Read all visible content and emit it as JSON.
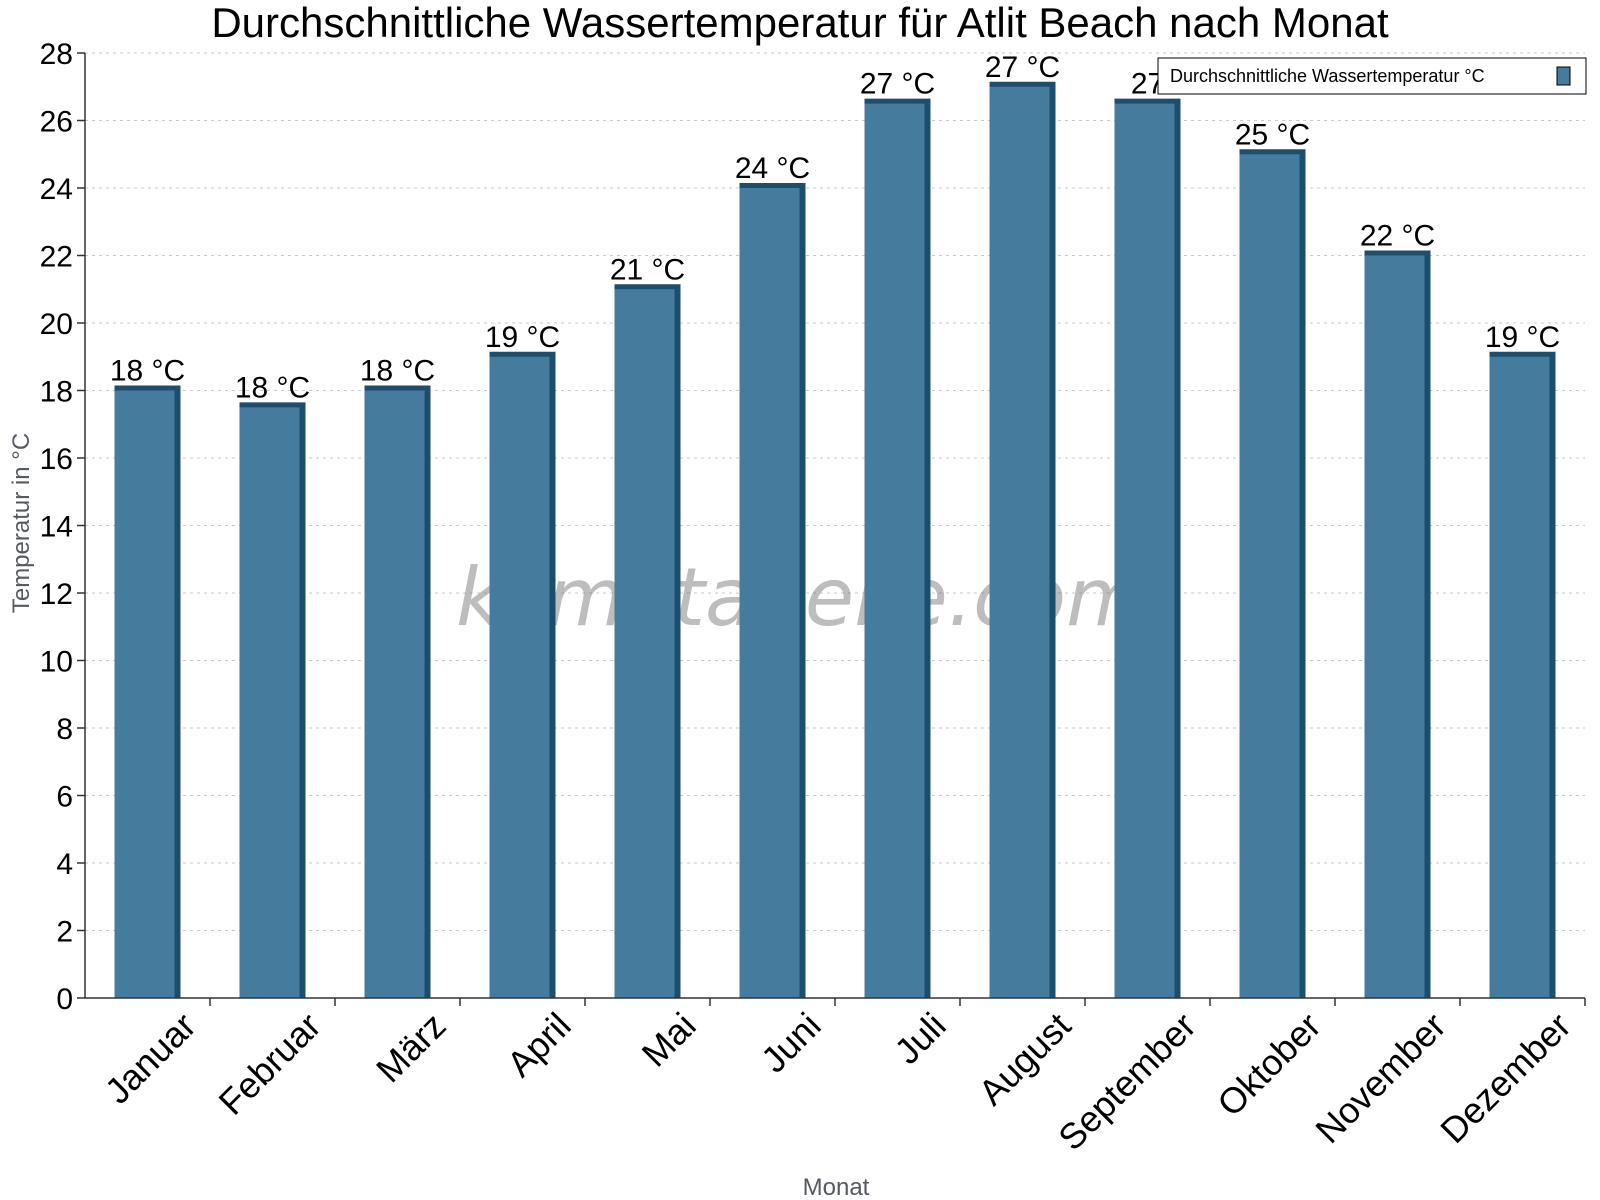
{
  "chart_data": {
    "type": "bar",
    "title": "Durchschnittliche Wassertemperatur für Atlit Beach nach Monat",
    "xlabel": "Monat",
    "ylabel": "Temperatur in °C",
    "ylim": [
      0,
      28
    ],
    "yticks": [
      "0",
      "2",
      "4",
      "6",
      "8",
      "10",
      "12",
      "14",
      "16",
      "18",
      "20",
      "22",
      "24",
      "26",
      "28"
    ],
    "grid": true,
    "legend_position": "top-right",
    "categories": [
      "Januar",
      "Februar",
      "März",
      "April",
      "Mai",
      "Juni",
      "Juli",
      "August",
      "September",
      "Oktober",
      "November",
      "Dezember"
    ],
    "series": [
      {
        "name": "Durchschnittliche Wassertemperatur °C",
        "values": [
          18,
          17.5,
          18,
          19,
          21,
          24,
          26.5,
          27,
          26.5,
          25,
          22,
          19
        ],
        "data_labels": [
          "18 °C",
          "18 °C",
          "18 °C",
          "19 °C",
          "21 °C",
          "24 °C",
          "27 °C",
          "27 °C",
          "27",
          "25 °C",
          "22 °C",
          "19 °C"
        ],
        "color": "#457b9d",
        "top_color": "#1d4e6e"
      }
    ],
    "watermark": "klimatabelle.com"
  }
}
